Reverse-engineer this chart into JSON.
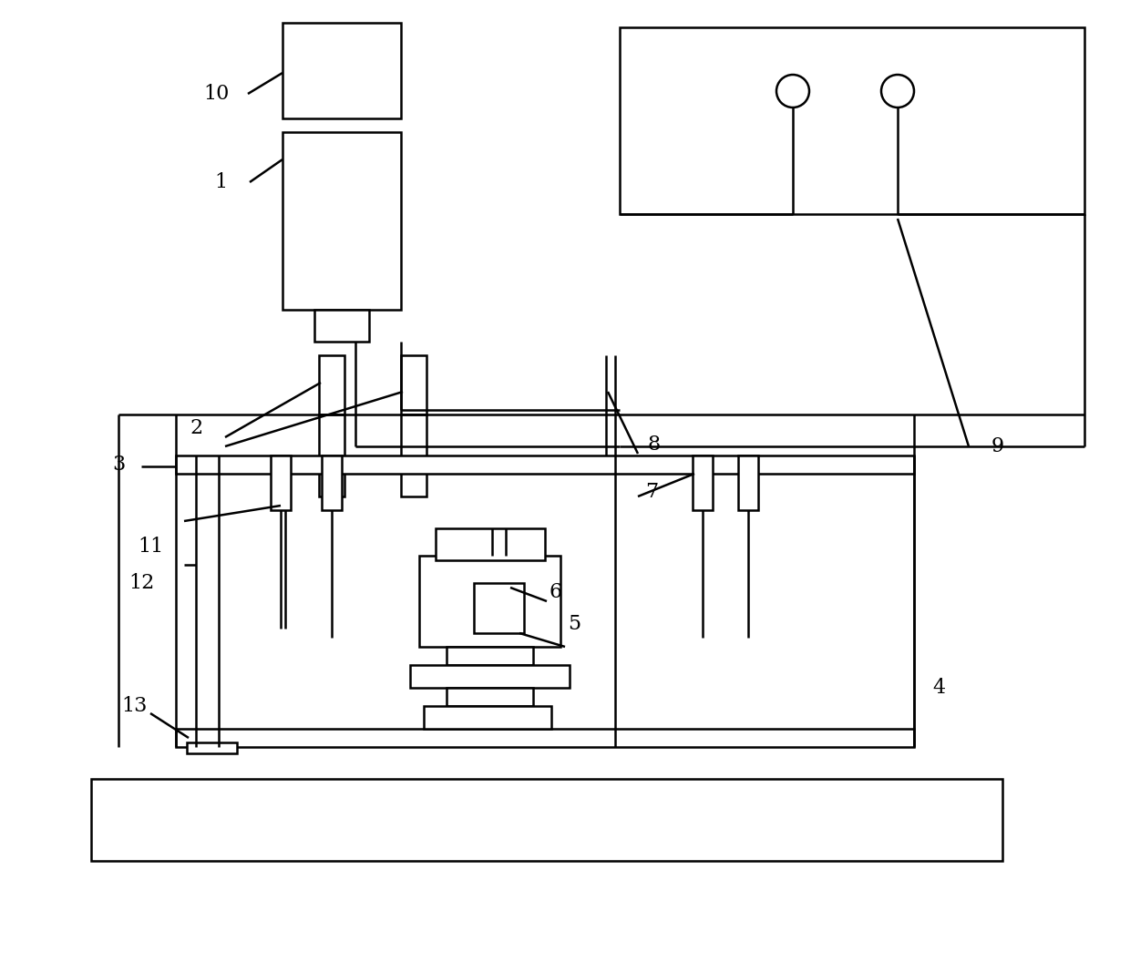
{
  "bg_color": "#ffffff",
  "lc": "#000000",
  "lw": 1.8,
  "fig_w": 12.4,
  "fig_h": 10.67
}
